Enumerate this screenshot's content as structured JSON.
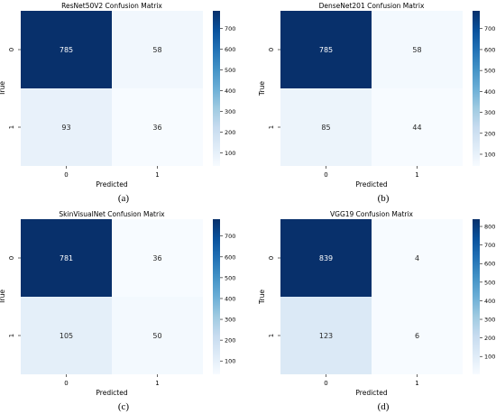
{
  "figure": {
    "captions": [
      "(a)",
      "(b)",
      "(c)",
      "(d)"
    ]
  },
  "chart_data": [
    {
      "type": "heatmap",
      "title": "ResNet50V2 Confusion Matrix",
      "xlabel": "Predicted",
      "ylabel": "True",
      "x_categories": [
        "0",
        "1"
      ],
      "y_categories": [
        "0",
        "1"
      ],
      "values": [
        [
          785,
          58
        ],
        [
          93,
          36
        ]
      ],
      "colormap": "Blues",
      "colorbar": {
        "ticks": [
          100,
          200,
          300,
          400,
          500,
          600,
          700
        ],
        "range": [
          36,
          785
        ]
      }
    },
    {
      "type": "heatmap",
      "title": "DenseNet201 Confusion Matrix",
      "xlabel": "Predicted",
      "ylabel": "True",
      "x_categories": [
        "0",
        "1"
      ],
      "y_categories": [
        "0",
        "1"
      ],
      "values": [
        [
          785,
          58
        ],
        [
          85,
          44
        ]
      ],
      "colormap": "Blues",
      "colorbar": {
        "ticks": [
          100,
          200,
          300,
          400,
          500,
          600,
          700
        ],
        "range": [
          44,
          785
        ]
      }
    },
    {
      "type": "heatmap",
      "title": "SkinVisualNet Confusion Matrix",
      "xlabel": "Predicted",
      "ylabel": "True",
      "x_categories": [
        "0",
        "1"
      ],
      "y_categories": [
        "0",
        "1"
      ],
      "values": [
        [
          781,
          36
        ],
        [
          105,
          50
        ]
      ],
      "colormap": "Blues",
      "colorbar": {
        "ticks": [
          100,
          200,
          300,
          400,
          500,
          600,
          700
        ],
        "range": [
          36,
          781
        ]
      }
    },
    {
      "type": "heatmap",
      "title": "VGG19 Confusion Matrix",
      "xlabel": "Predicted",
      "ylabel": "True",
      "x_categories": [
        "0",
        "1"
      ],
      "y_categories": [
        "0",
        "1"
      ],
      "values": [
        [
          839,
          4
        ],
        [
          123,
          6
        ]
      ],
      "colormap": "Blues",
      "colorbar": {
        "ticks": [
          100,
          200,
          300,
          400,
          500,
          600,
          700,
          800
        ],
        "range": [
          4,
          839
        ]
      }
    }
  ]
}
